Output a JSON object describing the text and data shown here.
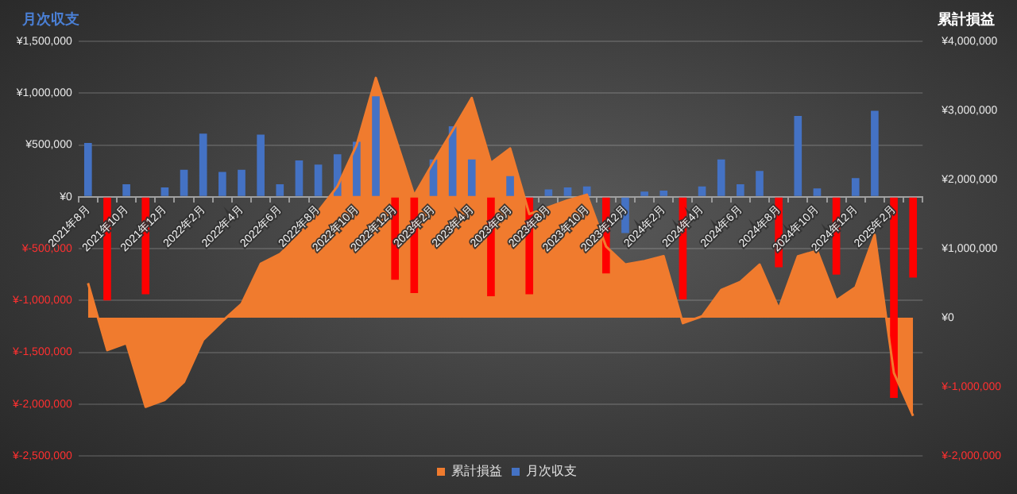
{
  "chart_data": {
    "type": "bar",
    "ylabel": "月次収支",
    "y2label": "累計損益",
    "categories": [
      "2021年8月",
      null,
      "2021年10月",
      null,
      "2021年12月",
      null,
      "2022年2月",
      null,
      "2022年4月",
      null,
      "2022年6月",
      null,
      "2022年8月",
      null,
      "2022年10月",
      null,
      "2022年12月",
      null,
      "2023年2月",
      null,
      "2023年4月",
      null,
      "2023年6月",
      null,
      "2023年8月",
      null,
      "2023年10月",
      null,
      "2023年12月",
      null,
      "2024年2月",
      null,
      "2024年4月",
      null,
      "2024年6月",
      null,
      "2024年8月",
      null,
      "2024年10月",
      null,
      "2024年12月",
      null,
      "2025年2月",
      null
    ],
    "series": [
      {
        "name": "累計損益",
        "type": "area",
        "axis": "y2",
        "color": "#f07b2e",
        "values": [
          500000,
          -470000,
          -370000,
          -1290000,
          -1190000,
          -930000,
          -320000,
          -50000,
          200000,
          780000,
          920000,
          1200000,
          1540000,
          1900000,
          2500000,
          3470000,
          2620000,
          1770000,
          2250000,
          2710000,
          3180000,
          2240000,
          2450000,
          1500000,
          1600000,
          1700000,
          1780000,
          1030000,
          770000,
          820000,
          890000,
          -80000,
          20000,
          400000,
          520000,
          770000,
          130000,
          890000,
          970000,
          250000,
          440000,
          1200000,
          -800000,
          -1420000
        ]
      },
      {
        "name": "月次収支",
        "type": "bar",
        "color": "#4472c4",
        "colors": [
          "#4472c4",
          "#ff0000",
          "#4472c4",
          "#ff0000",
          "#4472c4",
          "#4472c4",
          "#4472c4",
          "#4472c4",
          "#4472c4",
          "#4472c4",
          "#4472c4",
          "#4472c4",
          "#4472c4",
          "#4472c4",
          "#4472c4",
          "#4472c4",
          "#ff0000",
          "#ff0000",
          "#4472c4",
          "#4472c4",
          "#4472c4",
          "#ff0000",
          "#4472c4",
          "#ff0000",
          "#4472c4",
          "#4472c4",
          "#4472c4",
          "#ff0000",
          "#4472c4",
          "#4472c4",
          "#4472c4",
          "#ff0000",
          "#4472c4",
          "#4472c4",
          "#4472c4",
          "#4472c4",
          "#ff0000",
          "#4472c4",
          "#4472c4",
          "#ff0000",
          "#4472c4",
          "#4472c4",
          "#ff0000",
          "#ff0000"
        ],
        "values": [
          520000,
          -1000000,
          120000,
          -940000,
          90000,
          260000,
          610000,
          240000,
          260000,
          600000,
          120000,
          350000,
          310000,
          410000,
          530000,
          970000,
          -800000,
          -930000,
          360000,
          680000,
          360000,
          -960000,
          200000,
          -940000,
          70000,
          90000,
          100000,
          -740000,
          -350000,
          50000,
          60000,
          -990000,
          100000,
          360000,
          120000,
          250000,
          -680000,
          780000,
          80000,
          -750000,
          180000,
          830000,
          -1940000,
          -780000
        ]
      }
    ],
    "ylim": [
      -2500000,
      1500000
    ],
    "yticks": [
      {
        "value": -2500000,
        "label": "¥-2,500,000"
      },
      {
        "value": -2000000,
        "label": "¥-2,000,000"
      },
      {
        "value": -1500000,
        "label": "¥-1,500,000"
      },
      {
        "value": -1000000,
        "label": "¥-1,000,000"
      },
      {
        "value": -500000,
        "label": "¥-500,000"
      },
      {
        "value": 0,
        "label": "¥0"
      },
      {
        "value": 500000,
        "label": "¥500,000"
      },
      {
        "value": 1000000,
        "label": "¥1,000,000"
      },
      {
        "value": 1500000,
        "label": "¥1,500,000"
      }
    ],
    "y2lim": [
      -2000000,
      4000000
    ],
    "y2ticks": [
      {
        "value": -2000000,
        "label": "¥-2,000,000"
      },
      {
        "value": -1000000,
        "label": "¥-1,000,000"
      },
      {
        "value": 0,
        "label": "¥0"
      },
      {
        "value": 1000000,
        "label": "¥1,000,000"
      },
      {
        "value": 2000000,
        "label": "¥2,000,000"
      },
      {
        "value": 3000000,
        "label": "¥3,000,000"
      },
      {
        "value": 4000000,
        "label": "¥4,000,000"
      }
    ],
    "grid": "y",
    "legend": "bottom"
  }
}
